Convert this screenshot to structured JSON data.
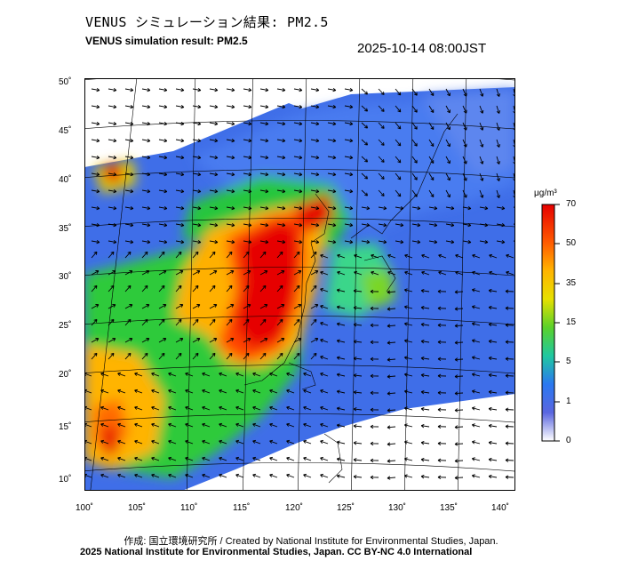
{
  "header": {
    "title_jp": "VENUS シミュレーション結果: PM2.5",
    "title_en": "VENUS simulation result: PM2.5",
    "timestamp": "2025-10-14 08:00JST"
  },
  "map": {
    "lat_labels": [
      "50˚",
      "45˚",
      "40˚",
      "35˚",
      "30˚",
      "25˚",
      "20˚",
      "15˚",
      "10˚"
    ],
    "lon_labels": [
      "100˚",
      "105˚",
      "110˚",
      "115˚",
      "120˚",
      "125˚",
      "130˚",
      "135˚",
      "140˚"
    ],
    "lat_range": [
      9,
      51
    ],
    "lon_range": [
      100,
      141
    ],
    "colors": {
      "ocean_background": "#3f6ee8",
      "outside_domain": "#ffffff",
      "high": "#e60000",
      "mid": "#21c821",
      "low": "#2f6ff0"
    }
  },
  "legend": {
    "unit": "μg/m³",
    "labels": [
      "70",
      "50",
      "35",
      "15",
      "5",
      "1",
      "0"
    ],
    "colors": [
      "#e60000",
      "#ff7a00",
      "#ffd200",
      "#7ad626",
      "#1fc8a0",
      "#2a78f0",
      "#4a62e0",
      "#ffffff"
    ]
  },
  "footer": {
    "credit": "作成: 国立環境研究所 / Created by National Institute for Environmental Studies, Japan.",
    "copyright": "2025 National Institute for Environmental Studies, Japan. CC BY-NC 4.0 International"
  }
}
